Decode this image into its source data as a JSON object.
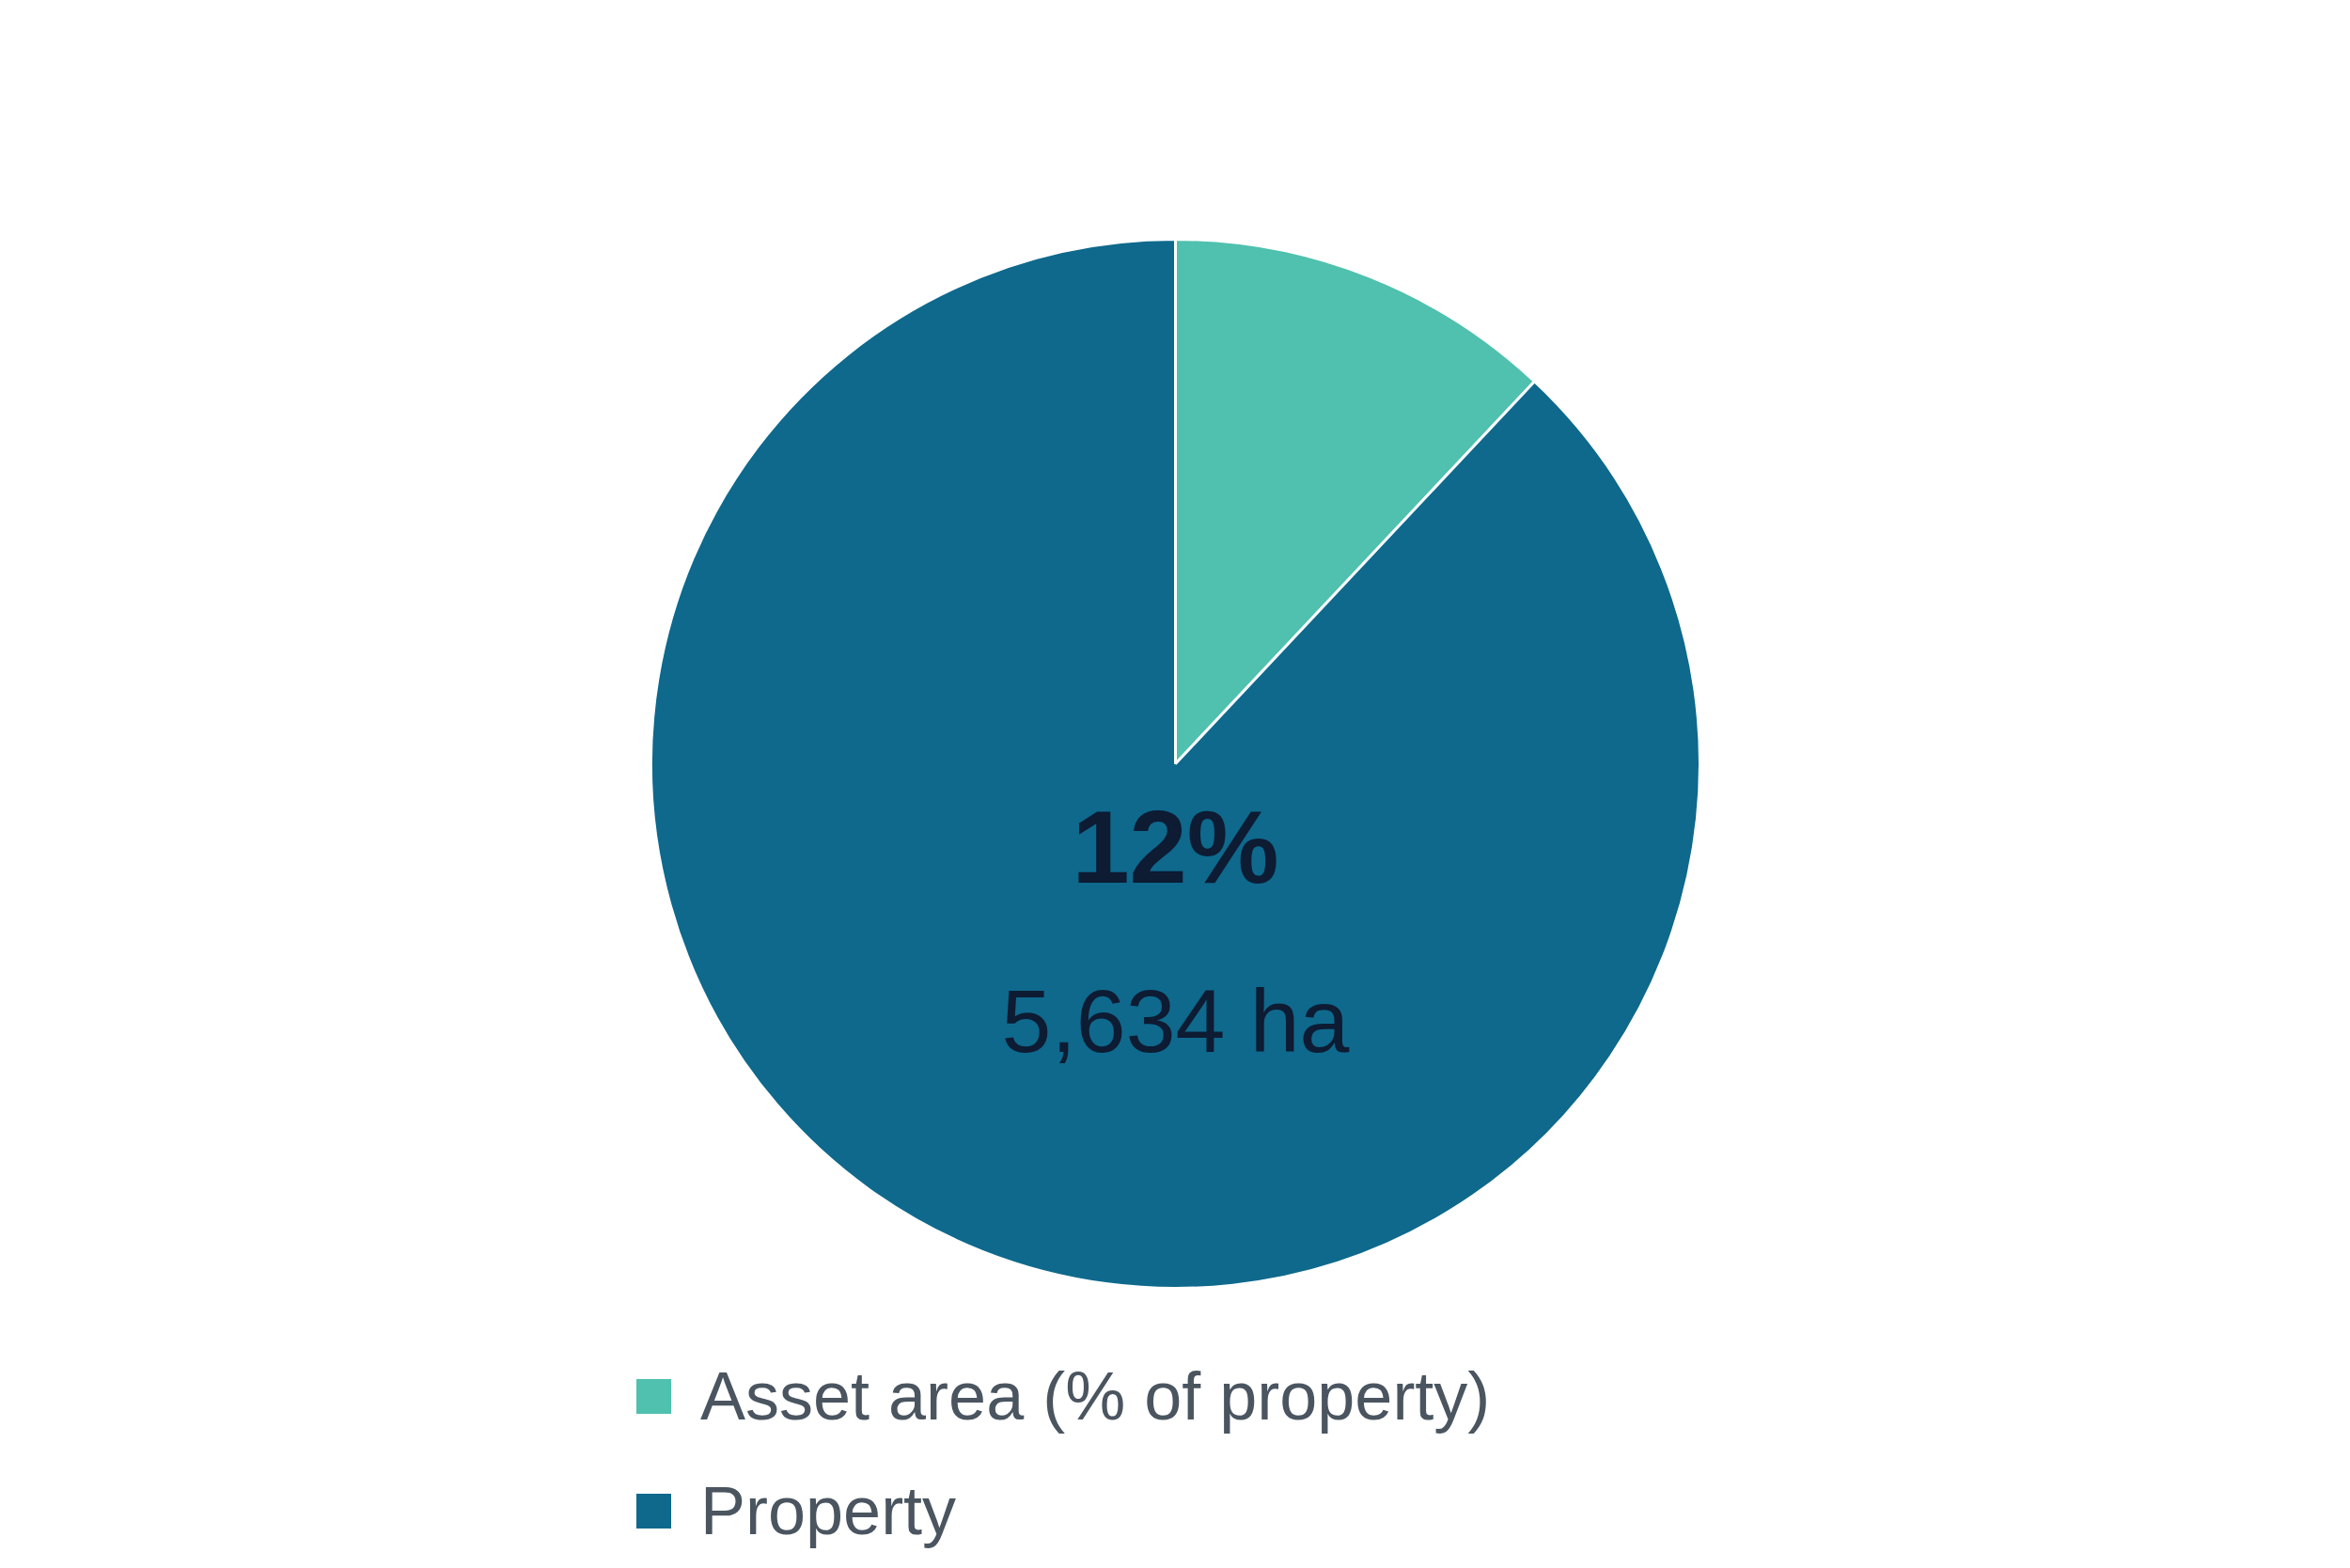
{
  "chart_data": {
    "type": "pie",
    "categories": [
      "Asset area (% of property)",
      "Property"
    ],
    "values": [
      12,
      88
    ],
    "colors": [
      "#4fc1ae",
      "#0e698c"
    ],
    "annotations": [
      "12%",
      "5,634 ha"
    ],
    "legend": "bottom"
  }
}
